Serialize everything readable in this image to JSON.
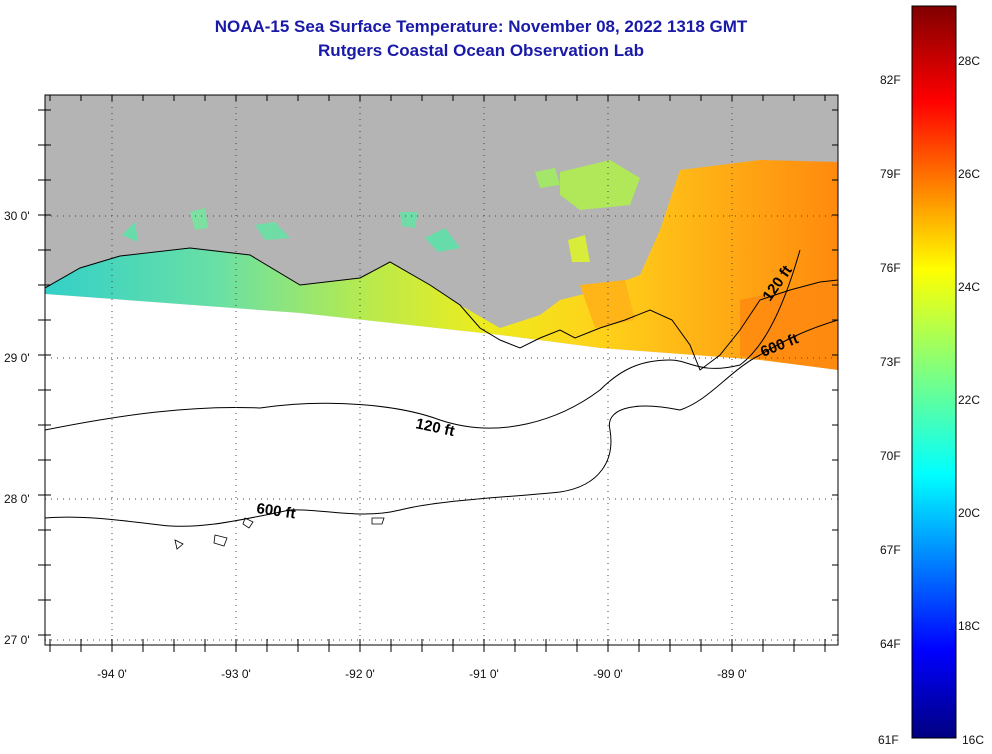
{
  "title": {
    "line1": "NOAA-15 Sea Surface Temperature:  November 08, 2022 1318 GMT",
    "line2": "Rutgers Coastal Ocean Observation Lab"
  },
  "map": {
    "lat_labels": [
      "30 0'",
      "29 0'",
      "28 0'",
      "27 0'"
    ],
    "lon_labels": [
      "-94 0'",
      "-93 0'",
      "-92 0'",
      "-91 0'",
      "-90 0'",
      "-89 0'"
    ],
    "lat_range": [
      26.95,
      30.85
    ],
    "lon_range": [
      -94.6,
      -88.0
    ],
    "land_color": "#b4b4b4",
    "contours": {
      "c120_label": "120 ft",
      "c600_label": "600 ft",
      "c120_label_east": "120 ft",
      "c600_label_east": "600 ft"
    }
  },
  "colorbar": {
    "f_labels": [
      "82F",
      "79F",
      "76F",
      "73F",
      "70F",
      "67F",
      "64F",
      "61F"
    ],
    "c_labels": [
      "28C",
      "26C",
      "24C",
      "22C",
      "20C",
      "18C",
      "16C"
    ],
    "range_c": [
      16,
      29
    ]
  },
  "palette": {
    "title": "#1a1aa8",
    "land": "#b4b4b4"
  }
}
